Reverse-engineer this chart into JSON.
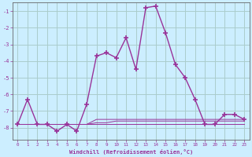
{
  "xlabel": "Windchill (Refroidissement éolien,°C)",
  "background_color": "#cceeff",
  "grid_color": "#aacccc",
  "line_color": "#993399",
  "spine_color": "#666666",
  "x": [
    0,
    1,
    2,
    3,
    4,
    5,
    6,
    7,
    8,
    9,
    10,
    11,
    12,
    13,
    14,
    15,
    16,
    17,
    18,
    19,
    20,
    21,
    22,
    23
  ],
  "y_main": [
    -7.8,
    -6.3,
    -7.8,
    -7.8,
    -8.2,
    -7.8,
    -8.2,
    -6.6,
    -3.7,
    -3.5,
    -3.8,
    -2.6,
    -4.5,
    -0.8,
    -0.7,
    -2.3,
    -4.2,
    -5.0,
    -6.3,
    -7.8,
    -7.8,
    -7.2,
    -7.2,
    -7.5
  ],
  "y_flat1": [
    -7.8,
    -7.8,
    -7.8,
    -7.8,
    -7.8,
    -7.8,
    -7.8,
    -7.8,
    -7.8,
    -7.8,
    -7.8,
    -7.8,
    -7.8,
    -7.8,
    -7.8,
    -7.8,
    -7.8,
    -7.8,
    -7.8,
    -7.8,
    -7.8,
    -7.8,
    -7.8,
    -7.8
  ],
  "y_flat2": [
    -7.8,
    -7.8,
    -7.8,
    -7.8,
    -7.8,
    -7.8,
    -7.8,
    -7.8,
    -7.5,
    -7.5,
    -7.5,
    -7.5,
    -7.5,
    -7.5,
    -7.5,
    -7.5,
    -7.5,
    -7.5,
    -7.5,
    -7.5,
    -7.5,
    -7.5,
    -7.5,
    -7.5
  ],
  "y_flat3": [
    -7.8,
    -7.8,
    -7.8,
    -7.8,
    -7.8,
    -7.8,
    -7.8,
    -7.8,
    -7.7,
    -7.7,
    -7.6,
    -7.6,
    -7.6,
    -7.6,
    -7.6,
    -7.6,
    -7.6,
    -7.6,
    -7.6,
    -7.6,
    -7.6,
    -7.6,
    -7.6,
    -7.6
  ],
  "ylim": [
    -8.7,
    -0.5
  ],
  "xlim": [
    -0.5,
    23.5
  ],
  "yticks": [
    -8,
    -7,
    -6,
    -5,
    -4,
    -3,
    -2,
    -1
  ],
  "xticks": [
    0,
    1,
    2,
    3,
    4,
    5,
    6,
    7,
    8,
    9,
    10,
    11,
    12,
    13,
    14,
    15,
    16,
    17,
    18,
    19,
    20,
    21,
    22,
    23
  ]
}
